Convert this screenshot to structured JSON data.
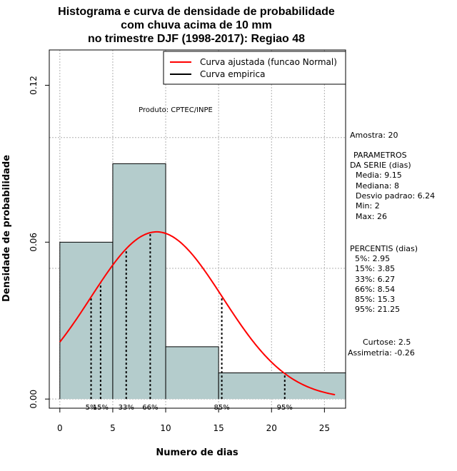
{
  "chart_data": {
    "type": "histogram",
    "title": [
      "Histograma e curva de densidade de probabilidade",
      "com chuva acima de 10 mm",
      "no trimestre DJF (1998-2017): Regiao 48"
    ],
    "xlabel": "Numero de dias",
    "ylabel": "Densidade de probabilidade",
    "xlim": [
      -1,
      27
    ],
    "ylim": [
      -0.0035,
      0.1335
    ],
    "x_ticks": [
      0,
      5,
      10,
      15,
      20,
      25
    ],
    "y_ticks": [
      0.0,
      0.06,
      0.12
    ],
    "y_tick_labels": [
      "0.00",
      "0.06",
      "0.12"
    ],
    "grid_x": [
      0,
      5,
      10,
      15,
      20,
      25
    ],
    "grid_y": [
      0.0,
      0.05,
      0.1
    ],
    "bins": [
      {
        "x0": 0,
        "x1": 5,
        "density": 0.06
      },
      {
        "x0": 5,
        "x1": 10,
        "density": 0.09
      },
      {
        "x0": 10,
        "x1": 15,
        "density": 0.02
      },
      {
        "x0": 15,
        "x1": 27,
        "density": 0.01
      }
    ],
    "bar_color": "#b4cccc",
    "normal_fit": {
      "mean": 9.15,
      "sd": 6.24,
      "x_from": 0,
      "x_to": 26,
      "color": "#ff0000"
    },
    "percentile_lines": [
      {
        "label": "5%",
        "x": 2.95
      },
      {
        "label": "15%",
        "x": 3.85
      },
      {
        "label": "33%",
        "x": 6.27
      },
      {
        "label": "66%",
        "x": 8.54
      },
      {
        "label": "85%",
        "x": 15.3
      },
      {
        "label": "95%",
        "x": 21.25
      }
    ],
    "legend": [
      {
        "label": "Curva ajustada (funcao Normal)",
        "color": "#ff0000"
      },
      {
        "label": "Curva empirica",
        "color": "#000000"
      }
    ],
    "product_note": "Produto: CPTEC/INPE",
    "side_text": [
      "Amostra: 20",
      "PARAMETROS",
      "DA SERIE (dias)",
      "Media: 9.15",
      "Mediana: 8",
      "Desvio padrao: 6.24",
      "Min: 2",
      "Max: 26",
      "PERCENTIS (dias)",
      "5%: 2.95",
      "15%: 3.85",
      "33%: 6.27",
      "66%: 8.54",
      "85%: 15.3",
      "95%: 21.25",
      "Curtose: 2.5",
      "Assimetria: -0.26"
    ]
  }
}
